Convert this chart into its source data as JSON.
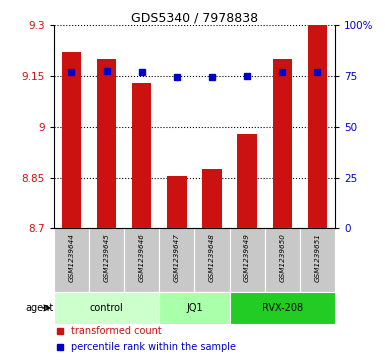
{
  "title": "GDS5340 / 7978838",
  "samples": [
    "GSM1239644",
    "GSM1239645",
    "GSM1239646",
    "GSM1239647",
    "GSM1239648",
    "GSM1239649",
    "GSM1239650",
    "GSM1239651"
  ],
  "bar_values": [
    9.22,
    9.2,
    9.13,
    8.855,
    8.875,
    8.98,
    9.2,
    9.3
  ],
  "blue_values": [
    9.163,
    9.165,
    9.163,
    9.148,
    9.148,
    9.15,
    9.163,
    9.163
  ],
  "bar_color": "#cc1111",
  "blue_color": "#0000cc",
  "ymin": 8.7,
  "ymax": 9.3,
  "yticks": [
    8.7,
    8.85,
    9.0,
    9.15,
    9.3
  ],
  "ytick_labels": [
    "8.7",
    "8.85",
    "9",
    "9.15",
    "9.3"
  ],
  "right_yticks": [
    0,
    25,
    50,
    75,
    100
  ],
  "right_ytick_labels": [
    "0",
    "25",
    "50",
    "75",
    "100%"
  ],
  "group_defs": [
    {
      "start": 0,
      "end": 2,
      "label": "control",
      "color": "#ccffcc"
    },
    {
      "start": 3,
      "end": 4,
      "label": "JQ1",
      "color": "#aaffaa"
    },
    {
      "start": 5,
      "end": 7,
      "label": "RVX-208",
      "color": "#22cc22"
    }
  ],
  "bar_width": 0.55,
  "legend_red": "transformed count",
  "legend_blue": "percentile rank within the sample"
}
